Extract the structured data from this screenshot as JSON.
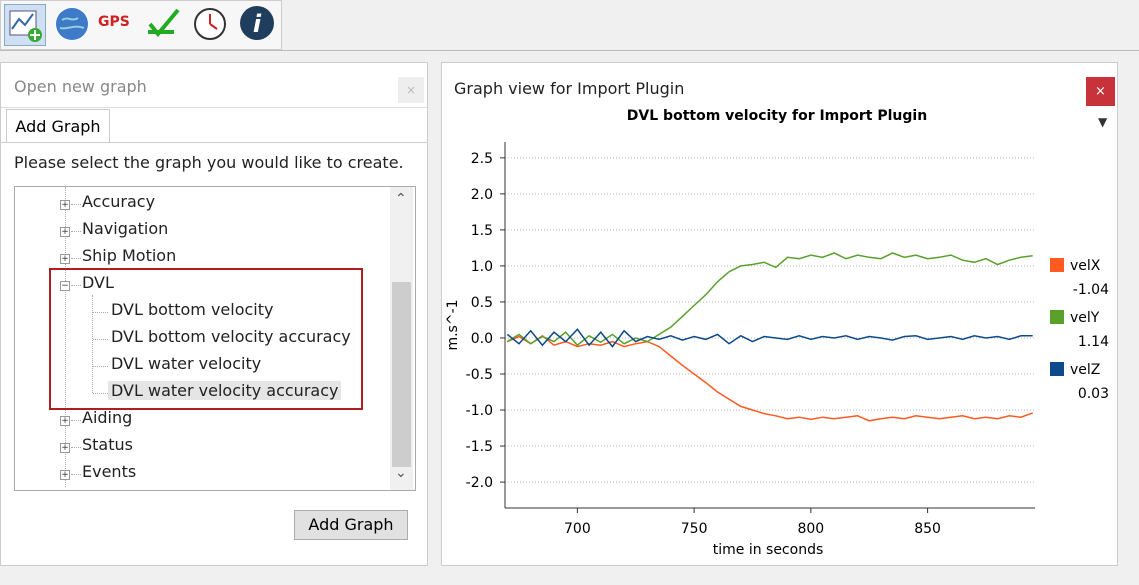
{
  "toolbar": {
    "gps": "GPS"
  },
  "left_panel": {
    "title": "Open new graph",
    "tab": "Add Graph",
    "prompt": "Please select the graph you would like to create.",
    "tree": [
      {
        "label": "Accuracy"
      },
      {
        "label": "Navigation"
      },
      {
        "label": "Ship Motion"
      },
      {
        "label": "DVL",
        "children": [
          "DVL bottom velocity",
          "DVL bottom velocity accuracy",
          "DVL water velocity",
          "DVL water velocity accuracy"
        ]
      },
      {
        "label": "Aiding"
      },
      {
        "label": "Status"
      },
      {
        "label": "Events"
      }
    ],
    "button": "Add Graph"
  },
  "right_panel": {
    "title": "Graph view for Import Plugin"
  },
  "chart_data": {
    "type": "line",
    "title": "DVL bottom velocity for Import Plugin",
    "x_label": "time in seconds",
    "y_label": "m.s^-1",
    "x": [
      670,
      675,
      680,
      685,
      690,
      695,
      700,
      705,
      710,
      715,
      720,
      725,
      730,
      735,
      740,
      745,
      750,
      755,
      760,
      765,
      770,
      775,
      780,
      785,
      790,
      795,
      800,
      805,
      810,
      815,
      820,
      825,
      830,
      835,
      840,
      845,
      850,
      855,
      860,
      865,
      870,
      875,
      880,
      885,
      890,
      895
    ],
    "series": [
      {
        "name": "velX",
        "color": "#ff5a1f",
        "current": -1.04,
        "values": [
          -0.05,
          0.02,
          -0.08,
          0.03,
          -0.1,
          -0.05,
          -0.12,
          -0.08,
          -0.1,
          -0.05,
          -0.12,
          -0.08,
          -0.05,
          -0.12,
          -0.25,
          -0.38,
          -0.5,
          -0.62,
          -0.75,
          -0.85,
          -0.95,
          -1.0,
          -1.05,
          -1.08,
          -1.12,
          -1.1,
          -1.13,
          -1.1,
          -1.12,
          -1.1,
          -1.08,
          -1.15,
          -1.12,
          -1.1,
          -1.12,
          -1.08,
          -1.1,
          -1.12,
          -1.1,
          -1.08,
          -1.12,
          -1.1,
          -1.12,
          -1.08,
          -1.1,
          -1.04
        ]
      },
      {
        "name": "velY",
        "color": "#5aa02c",
        "current": 1.14,
        "values": [
          -0.05,
          0.05,
          -0.08,
          0.02,
          -0.05,
          0.08,
          -0.1,
          0.03,
          -0.06,
          0.05,
          -0.08,
          0.0,
          -0.05,
          0.05,
          0.15,
          0.3,
          0.45,
          0.6,
          0.78,
          0.92,
          1.0,
          1.02,
          1.05,
          0.98,
          1.12,
          1.1,
          1.15,
          1.12,
          1.18,
          1.1,
          1.15,
          1.12,
          1.1,
          1.18,
          1.12,
          1.15,
          1.1,
          1.12,
          1.15,
          1.08,
          1.05,
          1.1,
          1.02,
          1.08,
          1.12,
          1.14
        ]
      },
      {
        "name": "velZ",
        "color": "#0d4a8a",
        "current": 0.03,
        "values": [
          0.05,
          -0.08,
          0.1,
          -0.1,
          0.08,
          -0.05,
          0.12,
          -0.1,
          0.08,
          -0.12,
          0.1,
          -0.05,
          0.02,
          -0.02,
          0.03,
          -0.03,
          0.02,
          -0.02,
          0.05,
          -0.08,
          0.03,
          -0.05,
          0.02,
          0.0,
          -0.02,
          0.03,
          -0.02,
          0.02,
          0.0,
          0.03,
          -0.02,
          0.02,
          0.0,
          -0.03,
          0.02,
          0.03,
          -0.02,
          0.0,
          0.02,
          -0.02,
          0.03,
          0.0,
          0.02,
          -0.02,
          0.03,
          0.03
        ]
      }
    ],
    "xlim": [
      669,
      896
    ],
    "ylim": [
      -2.36,
      2.72
    ],
    "xticks": [
      700,
      750,
      800,
      850
    ],
    "yticks": [
      2.5,
      {
        "value": 2,
        "label": "2.0"
      },
      1.5,
      {
        "value": 1,
        "label": "1.0"
      },
      0.5,
      {
        "value": 0,
        "label": "0.0"
      },
      -0.5,
      {
        "value": -1,
        "label": "-1.0"
      },
      -1.5,
      {
        "value": -2,
        "label": "-2.0"
      }
    ],
    "grid": true
  }
}
